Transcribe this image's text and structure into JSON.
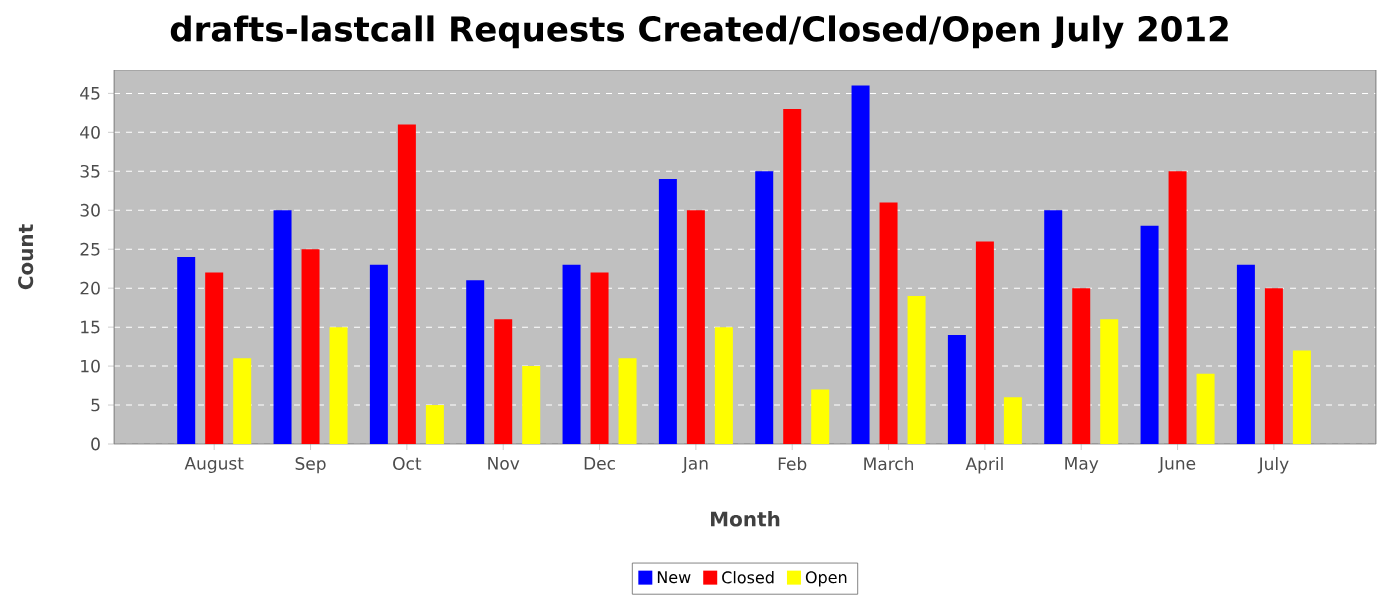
{
  "chart_data": {
    "type": "bar",
    "title": "drafts-lastcall Requests Created/Closed/Open July 2012",
    "xlabel": "Month",
    "ylabel": "Count",
    "categories": [
      "August",
      "Sep",
      "Oct",
      "Nov",
      "Dec",
      "Jan",
      "Feb",
      "March",
      "April",
      "May",
      "June",
      "July"
    ],
    "series": [
      {
        "name": "New",
        "color": "#0000ff",
        "values": [
          24,
          30,
          23,
          21,
          23,
          34,
          35,
          46,
          14,
          30,
          28,
          23
        ]
      },
      {
        "name": "Closed",
        "color": "#ff0000",
        "values": [
          22,
          25,
          41,
          16,
          22,
          30,
          43,
          31,
          26,
          20,
          35,
          20
        ]
      },
      {
        "name": "Open",
        "color": "#ffff00",
        "values": [
          11,
          15,
          5,
          10,
          11,
          15,
          7,
          19,
          6,
          16,
          9,
          12
        ]
      }
    ],
    "ylim": [
      0,
      48
    ],
    "yticks": [
      0,
      5,
      10,
      15,
      20,
      25,
      30,
      35,
      40,
      45
    ],
    "grid": "y",
    "legend": "bottom"
  }
}
